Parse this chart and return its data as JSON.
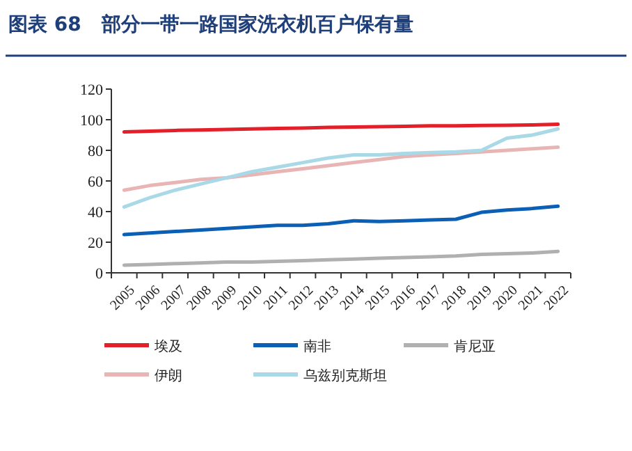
{
  "chart_data": {
    "type": "line",
    "title": "图表 68   部分一带一路国家洗衣机百户保有量",
    "categories": [
      "2005",
      "2006",
      "2007",
      "2008",
      "2009",
      "2010",
      "2011",
      "2012",
      "2013",
      "2014",
      "2015",
      "2016",
      "2017",
      "2018",
      "2019",
      "2020",
      "2021",
      "2022"
    ],
    "series": [
      {
        "name": "埃及",
        "color": "#e3202a",
        "values": [
          92,
          92.5,
          93,
          93.3,
          93.6,
          94,
          94.3,
          94.6,
          95,
          95.2,
          95.5,
          95.7,
          96,
          96,
          96.2,
          96.4,
          96.6,
          97
        ]
      },
      {
        "name": "南非",
        "color": "#0b5fb5",
        "values": [
          25,
          26,
          27,
          28,
          29,
          30,
          31,
          31,
          32,
          34,
          33.5,
          34,
          34.5,
          35,
          39.5,
          41,
          42,
          43.5
        ]
      },
      {
        "name": "肯尼亚",
        "color": "#b0b0b0",
        "values": [
          5,
          5.5,
          6,
          6.5,
          7,
          7,
          7.5,
          8,
          8.5,
          9,
          9.5,
          10,
          10.5,
          11,
          12,
          12.5,
          13,
          14
        ]
      },
      {
        "name": "伊朗",
        "color": "#e8b4b4",
        "values": [
          54,
          57,
          59,
          61,
          62,
          64,
          66,
          68,
          70,
          72,
          74,
          76,
          77,
          78,
          79,
          80,
          81,
          82
        ]
      },
      {
        "name": "乌兹别克斯坦",
        "color": "#a9d8e6",
        "values": [
          43,
          49,
          54,
          58,
          62,
          66,
          69,
          72,
          75,
          77,
          77,
          78,
          78.5,
          79,
          80,
          88,
          90,
          94
        ]
      }
    ],
    "ylim": [
      0,
      120
    ],
    "yticks": [
      0,
      20,
      40,
      60,
      80,
      100,
      120
    ],
    "legend": "bottom"
  }
}
